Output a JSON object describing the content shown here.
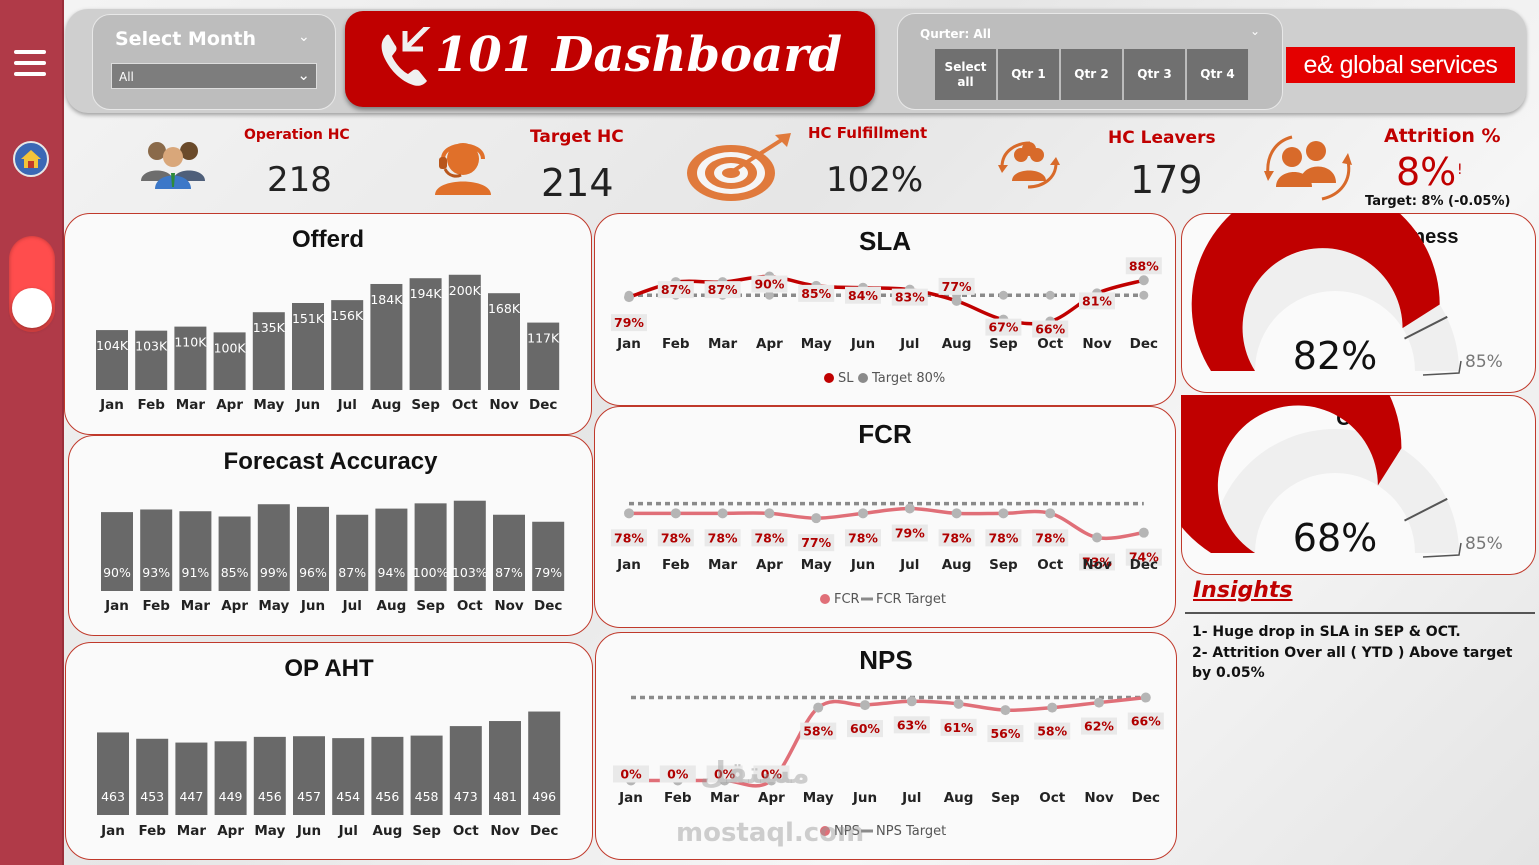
{
  "header": {
    "month_slicer": {
      "title": "Select Month",
      "value": "All"
    },
    "title": "101 Dashboard",
    "quarter_slicer": {
      "title": "Qurter: All",
      "buttons": [
        "Select all",
        "Qtr 1",
        "Qtr 2",
        "Qtr 3",
        "Qtr 4"
      ]
    },
    "brand": "e& global services"
  },
  "kpis": {
    "operation_hc": {
      "label": "Operation HC",
      "value": "218"
    },
    "target_hc": {
      "label": "Target HC",
      "value": "214"
    },
    "hc_fulfillment": {
      "label": "HC Fulfillment",
      "value": "102%"
    },
    "hc_leavers": {
      "label": "HC Leavers",
      "value": "179"
    },
    "attrition": {
      "label": "Attrition %",
      "value": "8%",
      "flag": "!",
      "target": "Target: 8% (-0.05%)"
    }
  },
  "colors": {
    "accent": "#c00000",
    "bar": "#696969",
    "line_sla": "#c00000",
    "line_light": "#e06f78",
    "target": "#8a8a8a"
  },
  "months": [
    "Jan",
    "Feb",
    "Mar",
    "Apr",
    "May",
    "Jun",
    "Jul",
    "Aug",
    "Sep",
    "Oct",
    "Nov",
    "Dec"
  ],
  "chart_data": [
    {
      "id": "offered",
      "type": "bar",
      "title": "Offerd",
      "categories": [
        "Jan",
        "Feb",
        "Mar",
        "Apr",
        "May",
        "Jun",
        "Jul",
        "Aug",
        "Sep",
        "Oct",
        "Nov",
        "Dec"
      ],
      "values": [
        104,
        103,
        110,
        100,
        135,
        151,
        156,
        184,
        194,
        200,
        168,
        117
      ],
      "labels": [
        "104K",
        "103K",
        "110K",
        "100K",
        "135K",
        "151K",
        "156K",
        "184K",
        "194K",
        "200K",
        "168K",
        "117K"
      ],
      "ylim": [
        0,
        210
      ]
    },
    {
      "id": "forecast",
      "type": "bar",
      "title": "Forecast Accuracy",
      "categories": [
        "Jan",
        "Feb",
        "Mar",
        "Apr",
        "May",
        "Jun",
        "Jul",
        "Aug",
        "Sep",
        "Oct",
        "Nov",
        "Dec"
      ],
      "values": [
        90,
        93,
        91,
        85,
        99,
        96,
        87,
        94,
        100,
        103,
        87,
        79
      ],
      "labels": [
        "90%",
        "93%",
        "91%",
        "85%",
        "99%",
        "96%",
        "87%",
        "94%",
        "100%",
        "103%",
        "87%",
        "79%"
      ],
      "ylim": [
        0,
        115
      ]
    },
    {
      "id": "aht",
      "type": "bar",
      "title": "OP AHT",
      "categories": [
        "Jan",
        "Feb",
        "Mar",
        "Apr",
        "May",
        "Jun",
        "Jul",
        "Aug",
        "Sep",
        "Oct",
        "Nov",
        "Dec"
      ],
      "values": [
        463,
        453,
        447,
        449,
        456,
        457,
        454,
        456,
        458,
        473,
        481,
        496
      ],
      "labels": [
        "463",
        "453",
        "447",
        "449",
        "456",
        "457",
        "454",
        "456",
        "458",
        "473",
        "481",
        "496"
      ],
      "ylim": [
        0,
        520
      ]
    },
    {
      "id": "sla",
      "type": "line",
      "title": "SLA",
      "categories": [
        "Jan",
        "Feb",
        "Mar",
        "Apr",
        "May",
        "Jun",
        "Jul",
        "Aug",
        "Sep",
        "Oct",
        "Nov",
        "Dec"
      ],
      "series": [
        {
          "name": "SL",
          "values": [
            79,
            87,
            87,
            90,
            85,
            84,
            83,
            77,
            67,
            66,
            81,
            88
          ],
          "labels": [
            "79%",
            "87%",
            "87%",
            "90%",
            "85%",
            "84%",
            "83%",
            "77%",
            "67%",
            "66%",
            "81%",
            "88%"
          ]
        },
        {
          "name": "Target 80%",
          "values": [
            80,
            80,
            80,
            80,
            80,
            80,
            80,
            80,
            80,
            80,
            80,
            80
          ]
        }
      ],
      "ylim": [
        62,
        94
      ]
    },
    {
      "id": "fcr",
      "type": "line",
      "title": "FCR",
      "categories": [
        "Jan",
        "Feb",
        "Mar",
        "Apr",
        "May",
        "Jun",
        "Jul",
        "Aug",
        "Sep",
        "Oct",
        "Nov",
        "Dec"
      ],
      "series": [
        {
          "name": "FCR",
          "values": [
            78,
            78,
            78,
            78,
            77,
            78,
            79,
            78,
            78,
            78,
            73,
            74
          ],
          "labels": [
            "78%",
            "78%",
            "78%",
            "78%",
            "77%",
            "78%",
            "79%",
            "78%",
            "78%",
            "78%",
            "73%",
            "74%"
          ]
        },
        {
          "name": "FCR Target",
          "values": [
            80,
            80,
            80,
            80,
            80,
            80,
            80,
            80,
            80,
            80,
            80,
            80
          ]
        }
      ],
      "ylim": [
        70,
        82
      ]
    },
    {
      "id": "nps",
      "type": "line",
      "title": "NPS",
      "categories": [
        "Jan",
        "Feb",
        "Mar",
        "Apr",
        "May",
        "Jun",
        "Jul",
        "Aug",
        "Sep",
        "Oct",
        "Nov",
        "Dec"
      ],
      "series": [
        {
          "name": "NPS",
          "values": [
            0,
            0,
            0,
            0,
            58,
            60,
            63,
            61,
            56,
            58,
            62,
            66
          ],
          "labels": [
            "0%",
            "0%",
            "0%",
            "0%",
            "58%",
            "60%",
            "63%",
            "61%",
            "56%",
            "58%",
            "62%",
            "66%"
          ]
        },
        {
          "name": "NPS Target",
          "values": [
            66,
            66,
            66,
            66,
            66,
            66,
            66,
            66,
            66,
            66,
            66,
            66
          ]
        }
      ],
      "ylim": [
        -6,
        72
      ]
    },
    {
      "id": "happiness",
      "type": "gauge",
      "title": "Customer Happiness",
      "value": 82,
      "label": "82%",
      "target": 85,
      "target_label": "85%",
      "max": 100
    },
    {
      "id": "ocr",
      "type": "gauge",
      "title": "OCR",
      "value": 68,
      "label": "68%",
      "target": 85,
      "target_label": "85%",
      "max": 100
    }
  ],
  "insights": {
    "title": "Insights",
    "items": [
      "1- Huge drop in SLA in SEP & OCT.",
      "2- Attrition Over all ( YTD ) Above target by 0.05%"
    ]
  },
  "watermark": {
    "line1": "مستقل",
    "line2": "mostaql.com"
  }
}
